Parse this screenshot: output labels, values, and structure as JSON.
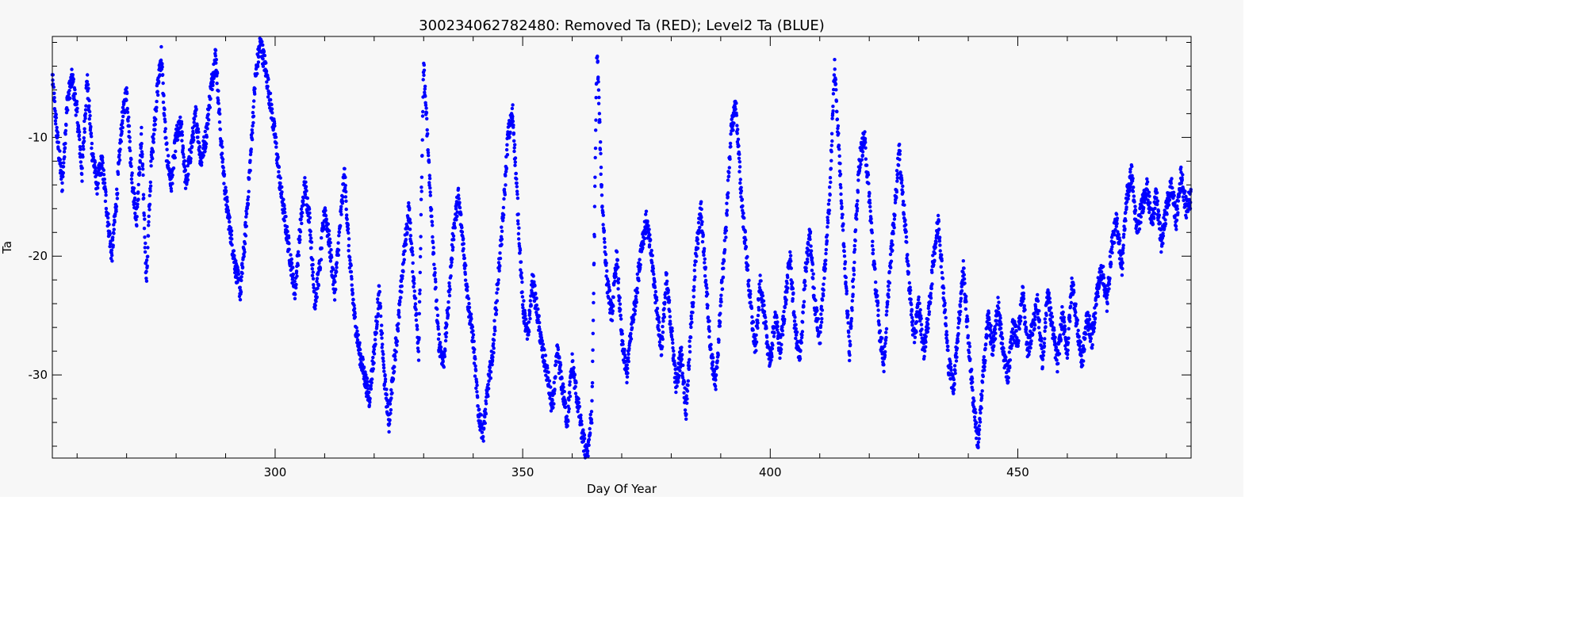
{
  "chart_data": {
    "type": "scatter",
    "title": "300234062782480: Removed Ta (RED); Level2 Ta (BLUE)",
    "xlabel": "Day Of Year",
    "ylabel": "Ta",
    "xlim": [
      255,
      485
    ],
    "ylim": [
      -37,
      -1.5
    ],
    "xticks": [
      300,
      350,
      400,
      450
    ],
    "yticks": [
      -10,
      -20,
      -30
    ],
    "xtick_labels": [
      "300",
      "350",
      "400",
      "450"
    ],
    "ytick_labels": [
      "-10",
      "-20",
      "-30"
    ],
    "grid": false,
    "series": [
      {
        "color": "#0000ff",
        "marker": "dot",
        "anchors": [
          [
            255,
            -5
          ],
          [
            256,
            -10
          ],
          [
            257,
            -14
          ],
          [
            258,
            -7
          ],
          [
            259,
            -5
          ],
          [
            260,
            -8
          ],
          [
            261,
            -13
          ],
          [
            262,
            -5
          ],
          [
            263,
            -11
          ],
          [
            264,
            -14
          ],
          [
            265,
            -12
          ],
          [
            266,
            -16
          ],
          [
            267,
            -20
          ],
          [
            268,
            -15
          ],
          [
            269,
            -9
          ],
          [
            270,
            -6
          ],
          [
            271,
            -13
          ],
          [
            272,
            -17
          ],
          [
            273,
            -10
          ],
          [
            274,
            -22
          ],
          [
            275,
            -12
          ],
          [
            276,
            -7
          ],
          [
            277,
            -3
          ],
          [
            278,
            -11
          ],
          [
            279,
            -14
          ],
          [
            280,
            -10
          ],
          [
            281,
            -9
          ],
          [
            282,
            -14
          ],
          [
            283,
            -11
          ],
          [
            284,
            -8
          ],
          [
            285,
            -12
          ],
          [
            286,
            -10
          ],
          [
            287,
            -6
          ],
          [
            288,
            -3
          ],
          [
            289,
            -10
          ],
          [
            290,
            -15
          ],
          [
            291,
            -18
          ],
          [
            292,
            -21
          ],
          [
            293,
            -23
          ],
          [
            294,
            -18
          ],
          [
            295,
            -12
          ],
          [
            296,
            -5
          ],
          [
            297,
            -2
          ],
          [
            298,
            -4
          ],
          [
            299,
            -7
          ],
          [
            300,
            -10
          ],
          [
            301,
            -14
          ],
          [
            302,
            -17
          ],
          [
            303,
            -20
          ],
          [
            304,
            -23
          ],
          [
            305,
            -18
          ],
          [
            306,
            -14
          ],
          [
            307,
            -17
          ],
          [
            308,
            -24
          ],
          [
            309,
            -21
          ],
          [
            310,
            -16
          ],
          [
            311,
            -19
          ],
          [
            312,
            -23
          ],
          [
            313,
            -18
          ],
          [
            314,
            -13
          ],
          [
            315,
            -20
          ],
          [
            316,
            -25
          ],
          [
            317,
            -28
          ],
          [
            318,
            -30
          ],
          [
            319,
            -32
          ],
          [
            320,
            -28
          ],
          [
            321,
            -23
          ],
          [
            322,
            -30
          ],
          [
            323,
            -34
          ],
          [
            324,
            -29
          ],
          [
            325,
            -25
          ],
          [
            326,
            -20
          ],
          [
            327,
            -16
          ],
          [
            328,
            -22
          ],
          [
            329,
            -28
          ],
          [
            330,
            -4
          ],
          [
            331,
            -12
          ],
          [
            332,
            -20
          ],
          [
            333,
            -27
          ],
          [
            334,
            -29
          ],
          [
            335,
            -24
          ],
          [
            336,
            -18
          ],
          [
            337,
            -15
          ],
          [
            338,
            -19
          ],
          [
            339,
            -24
          ],
          [
            340,
            -27
          ],
          [
            341,
            -33
          ],
          [
            342,
            -35
          ],
          [
            343,
            -31
          ],
          [
            344,
            -28
          ],
          [
            345,
            -22
          ],
          [
            346,
            -17
          ],
          [
            347,
            -10
          ],
          [
            348,
            -8
          ],
          [
            349,
            -16
          ],
          [
            350,
            -24
          ],
          [
            351,
            -27
          ],
          [
            352,
            -22
          ],
          [
            353,
            -25
          ],
          [
            354,
            -28
          ],
          [
            355,
            -30
          ],
          [
            356,
            -33
          ],
          [
            357,
            -28
          ],
          [
            358,
            -31
          ],
          [
            359,
            -34
          ],
          [
            360,
            -29
          ],
          [
            361,
            -32
          ],
          [
            362,
            -35
          ],
          [
            363,
            -37
          ],
          [
            364,
            -33
          ],
          [
            365,
            -2
          ],
          [
            366,
            -15
          ],
          [
            367,
            -22
          ],
          [
            368,
            -25
          ],
          [
            369,
            -20
          ],
          [
            370,
            -27
          ],
          [
            371,
            -30
          ],
          [
            372,
            -26
          ],
          [
            373,
            -23
          ],
          [
            374,
            -19
          ],
          [
            375,
            -17
          ],
          [
            376,
            -20
          ],
          [
            377,
            -24
          ],
          [
            378,
            -28
          ],
          [
            379,
            -22
          ],
          [
            380,
            -26
          ],
          [
            381,
            -31
          ],
          [
            382,
            -28
          ],
          [
            383,
            -33
          ],
          [
            384,
            -26
          ],
          [
            385,
            -20
          ],
          [
            386,
            -16
          ],
          [
            387,
            -22
          ],
          [
            388,
            -28
          ],
          [
            389,
            -31
          ],
          [
            390,
            -24
          ],
          [
            391,
            -18
          ],
          [
            392,
            -10
          ],
          [
            393,
            -7
          ],
          [
            394,
            -14
          ],
          [
            395,
            -19
          ],
          [
            396,
            -24
          ],
          [
            397,
            -28
          ],
          [
            398,
            -22
          ],
          [
            399,
            -26
          ],
          [
            400,
            -29
          ],
          [
            401,
            -25
          ],
          [
            402,
            -28
          ],
          [
            403,
            -24
          ],
          [
            404,
            -20
          ],
          [
            405,
            -26
          ],
          [
            406,
            -29
          ],
          [
            407,
            -22
          ],
          [
            408,
            -18
          ],
          [
            409,
            -24
          ],
          [
            410,
            -27
          ],
          [
            411,
            -21
          ],
          [
            412,
            -15
          ],
          [
            413,
            -4
          ],
          [
            414,
            -12
          ],
          [
            415,
            -20
          ],
          [
            416,
            -28
          ],
          [
            417,
            -20
          ],
          [
            418,
            -12
          ],
          [
            419,
            -10
          ],
          [
            420,
            -15
          ],
          [
            421,
            -21
          ],
          [
            422,
            -26
          ],
          [
            423,
            -29
          ],
          [
            424,
            -22
          ],
          [
            425,
            -17
          ],
          [
            426,
            -11
          ],
          [
            427,
            -16
          ],
          [
            428,
            -22
          ],
          [
            429,
            -27
          ],
          [
            430,
            -24
          ],
          [
            431,
            -28
          ],
          [
            432,
            -25
          ],
          [
            433,
            -20
          ],
          [
            434,
            -17
          ],
          [
            435,
            -23
          ],
          [
            436,
            -29
          ],
          [
            437,
            -31
          ],
          [
            438,
            -26
          ],
          [
            439,
            -21
          ],
          [
            440,
            -27
          ],
          [
            441,
            -32
          ],
          [
            442,
            -36
          ],
          [
            443,
            -30
          ],
          [
            444,
            -25
          ],
          [
            445,
            -28
          ],
          [
            446,
            -24
          ],
          [
            447,
            -28
          ],
          [
            448,
            -30
          ],
          [
            449,
            -26
          ],
          [
            450,
            -27
          ],
          [
            451,
            -23
          ],
          [
            452,
            -28
          ],
          [
            453,
            -26
          ],
          [
            454,
            -24
          ],
          [
            455,
            -29
          ],
          [
            456,
            -23
          ],
          [
            457,
            -26
          ],
          [
            458,
            -29
          ],
          [
            459,
            -25
          ],
          [
            460,
            -28
          ],
          [
            461,
            -22
          ],
          [
            462,
            -26
          ],
          [
            463,
            -29
          ],
          [
            464,
            -25
          ],
          [
            465,
            -27
          ],
          [
            466,
            -23
          ],
          [
            467,
            -21
          ],
          [
            468,
            -24
          ],
          [
            469,
            -19
          ],
          [
            470,
            -17
          ],
          [
            471,
            -21
          ],
          [
            472,
            -15
          ],
          [
            473,
            -13
          ],
          [
            474,
            -18
          ],
          [
            475,
            -16
          ],
          [
            476,
            -14
          ],
          [
            477,
            -17
          ],
          [
            478,
            -15
          ],
          [
            479,
            -19
          ],
          [
            480,
            -16
          ],
          [
            481,
            -14
          ],
          [
            482,
            -17
          ],
          [
            483,
            -13
          ],
          [
            484,
            -16
          ],
          [
            485,
            -15
          ]
        ]
      }
    ]
  }
}
